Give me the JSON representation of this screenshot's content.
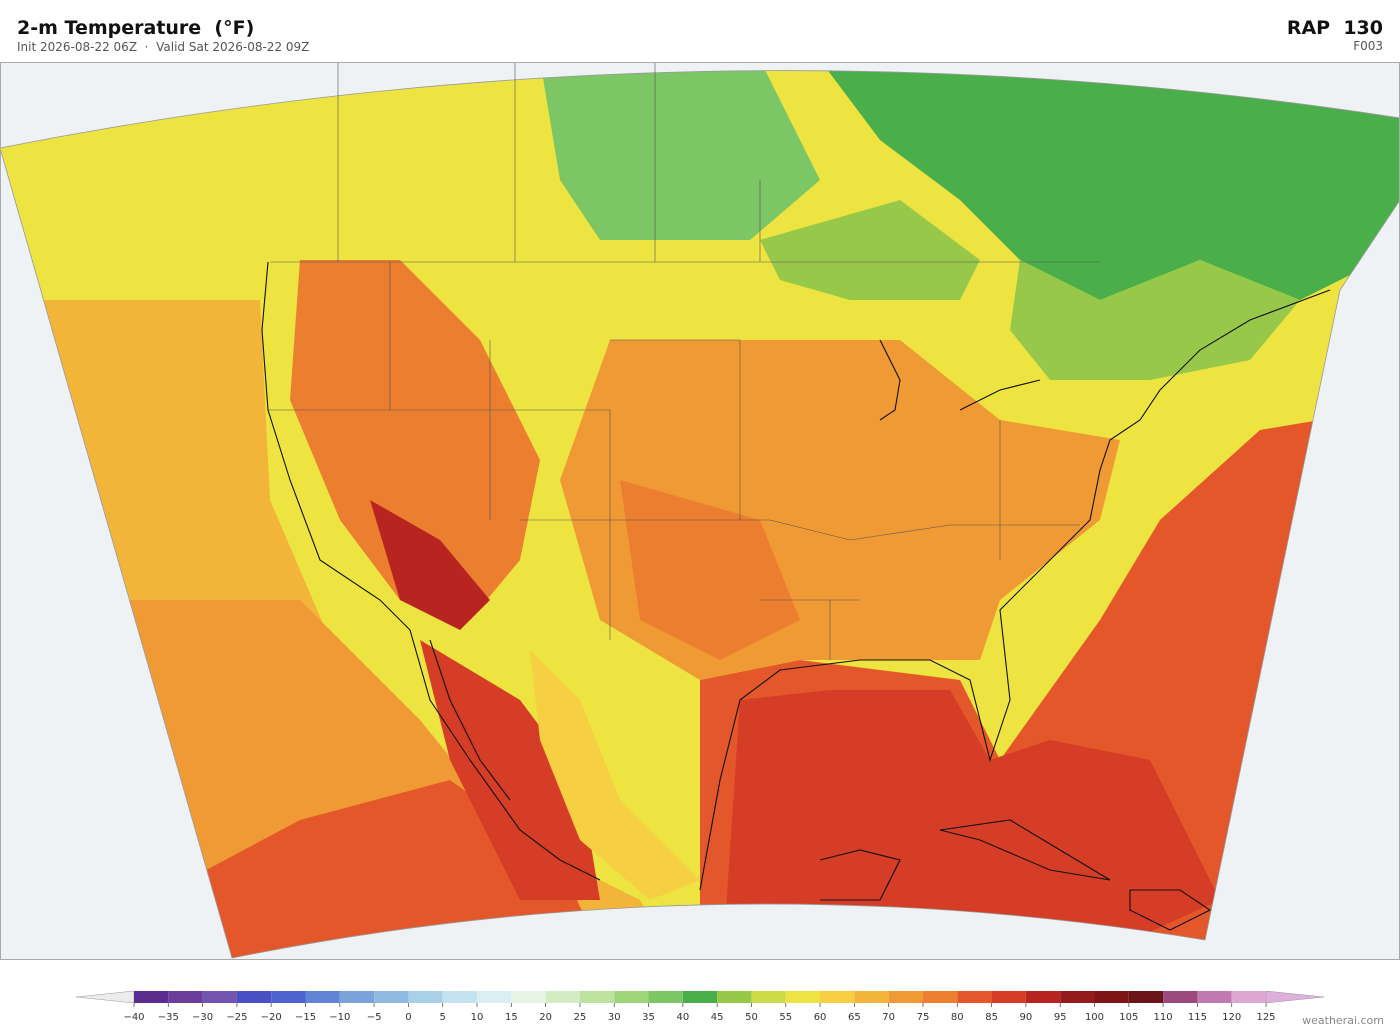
{
  "header": {
    "title": "2-m Temperature  (°F)",
    "subtitle": "Init 2026-08-22 06Z  ·  Valid Sat 2026-08-22 09Z",
    "model": "RAP  130",
    "forecast_hour": "F003"
  },
  "colorbar": {
    "ticks": [
      {
        "value": -40,
        "label": "−40"
      },
      {
        "value": -35,
        "label": "−35"
      },
      {
        "value": -30,
        "label": "−30"
      },
      {
        "value": -25,
        "label": "−25"
      },
      {
        "value": -20,
        "label": "−20"
      },
      {
        "value": -15,
        "label": "−15"
      },
      {
        "value": -10,
        "label": "−10"
      },
      {
        "value": -5,
        "label": "−5"
      },
      0,
      5,
      10,
      15,
      20,
      25,
      30,
      35,
      40,
      45,
      50,
      55,
      60,
      65,
      70,
      75,
      80,
      85,
      90,
      95,
      100,
      105,
      110,
      115,
      120,
      125
    ],
    "colors": [
      "#5b2d8e",
      "#6a3d9a",
      "#7354b0",
      "#4a4fc4",
      "#4e63cf",
      "#6384d6",
      "#7aa3dc",
      "#8fbbe0",
      "#a8d1e8",
      "#c4e2f0",
      "#daeef3",
      "#e6f4e6",
      "#d4ecc4",
      "#bde39e",
      "#9fd67c",
      "#7cc665",
      "#4aae4a",
      "#98c84a",
      "#cddc46",
      "#ede442",
      "#f6cf42",
      "#f3b43a",
      "#f09a35",
      "#ec7e30",
      "#e4572b",
      "#d63d26",
      "#b82521",
      "#951a1b",
      "#7d1416",
      "#6b1418",
      "#9c4a7e",
      "#c07ab0",
      "#dba7d3"
    ],
    "extend_colors": [
      "#ececec",
      "#e0b0dc"
    ]
  },
  "footer": {
    "watermark": "weatherai.com"
  }
}
